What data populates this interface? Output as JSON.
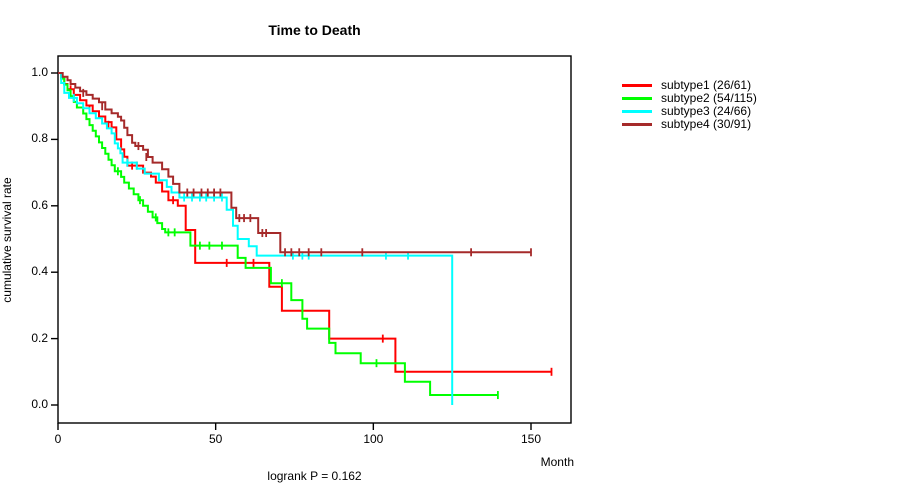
{
  "title": "Time to Death",
  "footnote": "logrank P = 0.162",
  "axes": {
    "x_label": "Month",
    "y_label": "cumulative survival rate"
  },
  "chart_data": {
    "type": "line",
    "variant": "kaplan-meier-step",
    "title": "Time to Death",
    "xlabel": "Month",
    "ylabel": "cumulative survival rate",
    "annotation": "logrank P = 0.162",
    "xlim": [
      0,
      163
    ],
    "ylim": [
      0,
      1
    ],
    "x_ticks": [
      0,
      50,
      100,
      150
    ],
    "y_ticks": [
      0.0,
      0.2,
      0.4,
      0.6,
      0.8,
      1.0
    ],
    "grid": false,
    "legend_position": "right-outside",
    "frame_color": "#000000",
    "series": [
      {
        "name": "subtype1",
        "label": "subtype1 (26/61)",
        "events": "26/61",
        "color": "#ff0000",
        "end": 156.5,
        "steps": [
          [
            0,
            1.0
          ],
          [
            1,
            0.984
          ],
          [
            2,
            0.967
          ],
          [
            3,
            0.951
          ],
          [
            5,
            0.934
          ],
          [
            7,
            0.918
          ],
          [
            9,
            0.902
          ],
          [
            11,
            0.885
          ],
          [
            13,
            0.869
          ],
          [
            15,
            0.852
          ],
          [
            17,
            0.836
          ],
          [
            18.5,
            0.8
          ],
          [
            20,
            0.77
          ],
          [
            21,
            0.748
          ],
          [
            22,
            0.721
          ],
          [
            27,
            0.7
          ],
          [
            29.5,
            0.688
          ],
          [
            31,
            0.67
          ],
          [
            33,
            0.643
          ],
          [
            35,
            0.617
          ],
          [
            38,
            0.6
          ],
          [
            40.5,
            0.527
          ],
          [
            43.5,
            0.428
          ],
          [
            67,
            0.356
          ],
          [
            71,
            0.284
          ],
          [
            86,
            0.2
          ],
          [
            107,
            0.1
          ]
        ],
        "censors": [
          [
            4,
            0.951
          ],
          [
            10,
            0.893
          ],
          [
            16,
            0.844
          ],
          [
            23.5,
            0.721
          ],
          [
            25,
            0.721
          ],
          [
            36.5,
            0.617
          ],
          [
            53.5,
            0.428
          ],
          [
            62,
            0.428
          ],
          [
            103,
            0.2
          ],
          [
            156.5,
            0.1
          ]
        ]
      },
      {
        "name": "subtype2",
        "label": "subtype2 (54/115)",
        "events": "54/115",
        "color": "#00ff00",
        "end": 139.5,
        "steps": [
          [
            0,
            1.0
          ],
          [
            1,
            0.983
          ],
          [
            2,
            0.965
          ],
          [
            3,
            0.948
          ],
          [
            4,
            0.93
          ],
          [
            5,
            0.913
          ],
          [
            6,
            0.896
          ],
          [
            8,
            0.878
          ],
          [
            9,
            0.861
          ],
          [
            10,
            0.843
          ],
          [
            11,
            0.826
          ],
          [
            12,
            0.809
          ],
          [
            13,
            0.791
          ],
          [
            14,
            0.774
          ],
          [
            15,
            0.757
          ],
          [
            16,
            0.739
          ],
          [
            17,
            0.722
          ],
          [
            18,
            0.704
          ],
          [
            20,
            0.687
          ],
          [
            21,
            0.67
          ],
          [
            22.5,
            0.652
          ],
          [
            24,
            0.635
          ],
          [
            25.5,
            0.617
          ],
          [
            27,
            0.6
          ],
          [
            28.5,
            0.582
          ],
          [
            30,
            0.565
          ],
          [
            31.5,
            0.548
          ],
          [
            33,
            0.53
          ],
          [
            34,
            0.52
          ],
          [
            42,
            0.48
          ],
          [
            57,
            0.443
          ],
          [
            59.5,
            0.413
          ],
          [
            67.5,
            0.367
          ],
          [
            74,
            0.316
          ],
          [
            77.5,
            0.26
          ],
          [
            79,
            0.23
          ],
          [
            86,
            0.187
          ],
          [
            88,
            0.156
          ],
          [
            96,
            0.126
          ],
          [
            110,
            0.07
          ],
          [
            118,
            0.03
          ]
        ],
        "censors": [
          [
            19,
            0.704
          ],
          [
            26,
            0.617
          ],
          [
            31,
            0.565
          ],
          [
            35,
            0.52
          ],
          [
            37,
            0.52
          ],
          [
            45,
            0.48
          ],
          [
            48,
            0.48
          ],
          [
            52,
            0.48
          ],
          [
            71,
            0.367
          ],
          [
            101,
            0.126
          ],
          [
            139.5,
            0.03
          ]
        ]
      },
      {
        "name": "subtype3",
        "label": "subtype3 (24/66)",
        "events": "24/66",
        "color": "#00ffff",
        "end": 125,
        "steps": [
          [
            0,
            1.0
          ],
          [
            1,
            0.97
          ],
          [
            2,
            0.94
          ],
          [
            3.5,
            0.925
          ],
          [
            6,
            0.909
          ],
          [
            8,
            0.894
          ],
          [
            10,
            0.879
          ],
          [
            12,
            0.864
          ],
          [
            14,
            0.848
          ],
          [
            15.5,
            0.833
          ],
          [
            17,
            0.818
          ],
          [
            18,
            0.788
          ],
          [
            19,
            0.773
          ],
          [
            19.8,
            0.758
          ],
          [
            20.5,
            0.73
          ],
          [
            25,
            0.712
          ],
          [
            27.5,
            0.697
          ],
          [
            32,
            0.677
          ],
          [
            34.5,
            0.657
          ],
          [
            36,
            0.64
          ],
          [
            38.5,
            0.625
          ],
          [
            53.5,
            0.588
          ],
          [
            55.5,
            0.54
          ],
          [
            57,
            0.5
          ],
          [
            60.5,
            0.478
          ],
          [
            63,
            0.45
          ],
          [
            125,
            0.0
          ]
        ],
        "censors": [
          [
            5,
            0.925
          ],
          [
            22,
            0.73
          ],
          [
            40,
            0.625
          ],
          [
            42.5,
            0.625
          ],
          [
            45,
            0.625
          ],
          [
            47,
            0.625
          ],
          [
            49.5,
            0.625
          ],
          [
            52,
            0.625
          ],
          [
            74.5,
            0.45
          ],
          [
            77.5,
            0.45
          ],
          [
            79.5,
            0.45
          ],
          [
            104,
            0.45
          ],
          [
            111,
            0.45
          ]
        ]
      },
      {
        "name": "subtype4",
        "label": "subtype4 (30/91)",
        "events": "30/91",
        "color": "#a52a2a",
        "end": 150,
        "steps": [
          [
            0,
            1.0
          ],
          [
            1.5,
            0.989
          ],
          [
            3,
            0.978
          ],
          [
            4,
            0.967
          ],
          [
            5.5,
            0.956
          ],
          [
            7,
            0.945
          ],
          [
            9,
            0.934
          ],
          [
            11,
            0.923
          ],
          [
            13,
            0.912
          ],
          [
            15,
            0.89
          ],
          [
            17,
            0.879
          ],
          [
            19,
            0.868
          ],
          [
            20,
            0.857
          ],
          [
            21,
            0.835
          ],
          [
            22,
            0.813
          ],
          [
            23.5,
            0.79
          ],
          [
            24.5,
            0.78
          ],
          [
            27,
            0.769
          ],
          [
            28.5,
            0.747
          ],
          [
            30,
            0.73
          ],
          [
            33,
            0.71
          ],
          [
            35,
            0.688
          ],
          [
            36.5,
            0.666
          ],
          [
            38.5,
            0.64
          ],
          [
            55,
            0.594
          ],
          [
            56.5,
            0.563
          ],
          [
            63.5,
            0.518
          ],
          [
            70.5,
            0.46
          ]
        ],
        "censors": [
          [
            8,
            0.94
          ],
          [
            14,
            0.9
          ],
          [
            25.5,
            0.78
          ],
          [
            28,
            0.747
          ],
          [
            41,
            0.64
          ],
          [
            43,
            0.64
          ],
          [
            45.5,
            0.64
          ],
          [
            47.5,
            0.64
          ],
          [
            49.5,
            0.64
          ],
          [
            51.5,
            0.64
          ],
          [
            57.5,
            0.563
          ],
          [
            59,
            0.563
          ],
          [
            61,
            0.563
          ],
          [
            64.8,
            0.518
          ],
          [
            66,
            0.518
          ],
          [
            72,
            0.46
          ],
          [
            74,
            0.46
          ],
          [
            76.5,
            0.46
          ],
          [
            79.5,
            0.46
          ],
          [
            83.5,
            0.46
          ],
          [
            96.5,
            0.46
          ],
          [
            131,
            0.46
          ],
          [
            150,
            0.46
          ]
        ]
      }
    ]
  }
}
